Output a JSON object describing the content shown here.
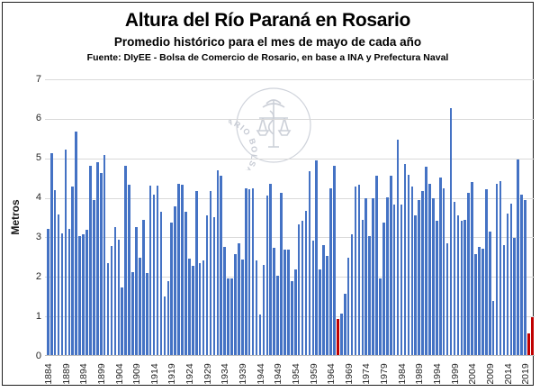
{
  "watermark": {
    "text": "BOLSA DE COMERCIO DE ROSARIO"
  },
  "chart_data": {
    "type": "bar",
    "title": "Altura del Río Paraná en Rosario",
    "subtitle": "Promedio histórico para el mes de mayo de cada año",
    "source": "Fuente: DIyEE - Bolsa de Comercio de Rosario, en base a INA y Prefectura Naval",
    "ylabel": "Metros",
    "ylim": [
      0,
      7
    ],
    "yticks": [
      0,
      1,
      2,
      3,
      4,
      5,
      6,
      7
    ],
    "grid": true,
    "legend": false,
    "bar_color": "#4472C4",
    "highlight_color": "#C00000",
    "red_years": [
      1966,
      2020,
      2021
    ],
    "xtick_years": [
      1884,
      1889,
      1894,
      1899,
      1904,
      1909,
      1914,
      1919,
      1924,
      1929,
      1934,
      1939,
      1944,
      1949,
      1954,
      1959,
      1964,
      1969,
      1974,
      1979,
      1984,
      1989,
      1994,
      1999,
      2004,
      2009,
      2014,
      2019
    ],
    "years": [
      1884,
      1885,
      1886,
      1887,
      1888,
      1889,
      1890,
      1891,
      1892,
      1893,
      1894,
      1895,
      1896,
      1897,
      1898,
      1899,
      1900,
      1901,
      1902,
      1903,
      1904,
      1905,
      1906,
      1907,
      1908,
      1909,
      1910,
      1911,
      1912,
      1913,
      1914,
      1915,
      1916,
      1917,
      1918,
      1919,
      1920,
      1921,
      1922,
      1923,
      1924,
      1925,
      1926,
      1927,
      1928,
      1929,
      1930,
      1931,
      1932,
      1933,
      1934,
      1935,
      1936,
      1937,
      1938,
      1939,
      1940,
      1941,
      1942,
      1943,
      1944,
      1945,
      1946,
      1947,
      1948,
      1949,
      1950,
      1951,
      1952,
      1953,
      1954,
      1955,
      1956,
      1957,
      1958,
      1959,
      1960,
      1961,
      1962,
      1963,
      1964,
      1965,
      1966,
      1967,
      1968,
      1969,
      1970,
      1971,
      1972,
      1973,
      1974,
      1975,
      1976,
      1977,
      1978,
      1979,
      1980,
      1981,
      1982,
      1983,
      1984,
      1985,
      1986,
      1987,
      1988,
      1989,
      1990,
      1991,
      1992,
      1993,
      1994,
      1995,
      1996,
      1997,
      1998,
      1999,
      2000,
      2001,
      2002,
      2003,
      2004,
      2005,
      2006,
      2007,
      2008,
      2009,
      2010,
      2011,
      2012,
      2013,
      2014,
      2015,
      2016,
      2017,
      2018,
      2019,
      2020,
      2021
    ],
    "values": [
      3.2,
      5.1,
      4.17,
      3.55,
      3.08,
      5.2,
      3.2,
      4.27,
      5.65,
      3.02,
      3.05,
      3.17,
      4.8,
      3.92,
      4.87,
      4.6,
      5.07,
      2.33,
      2.77,
      3.25,
      2.92,
      1.7,
      4.8,
      4.3,
      2.1,
      3.25,
      2.47,
      3.42,
      2.07,
      4.29,
      4.06,
      4.29,
      3.62,
      1.48,
      1.87,
      3.35,
      3.77,
      4.34,
      4.3,
      3.62,
      2.44,
      2.25,
      4.15,
      2.33,
      2.4,
      3.54,
      4.15,
      3.5,
      4.67,
      4.54,
      2.74,
      1.95,
      1.95,
      2.55,
      2.82,
      2.42,
      4.22,
      4.19,
      4.22,
      2.4,
      1.03,
      2.29,
      4.03,
      4.34,
      2.71,
      2.01,
      4.11,
      2.67,
      2.67,
      1.87,
      2.17,
      3.31,
      3.39,
      3.66,
      4.66,
      2.9,
      4.92,
      2.17,
      2.78,
      2.52,
      4.23,
      4.79,
      0.92,
      1.05,
      1.55,
      2.46,
      3.05,
      4.27,
      4.3,
      3.42,
      3.96,
      3.0,
      3.96,
      4.55,
      1.95,
      3.35,
      4.0,
      4.55,
      3.81,
      5.45,
      3.81,
      4.83,
      4.57,
      4.26,
      3.54,
      3.92,
      4.15,
      4.76,
      4.34,
      3.96,
      3.39,
      4.49,
      4.22,
      2.82,
      6.24,
      3.88,
      3.54,
      3.39,
      3.43,
      4.11,
      4.38,
      2.55,
      2.74,
      2.7,
      4.19,
      3.12,
      1.37,
      4.34,
      4.41,
      2.78,
      3.58,
      3.84,
      2.97,
      4.95,
      4.07,
      3.92,
      0.54,
      0.97
    ]
  }
}
